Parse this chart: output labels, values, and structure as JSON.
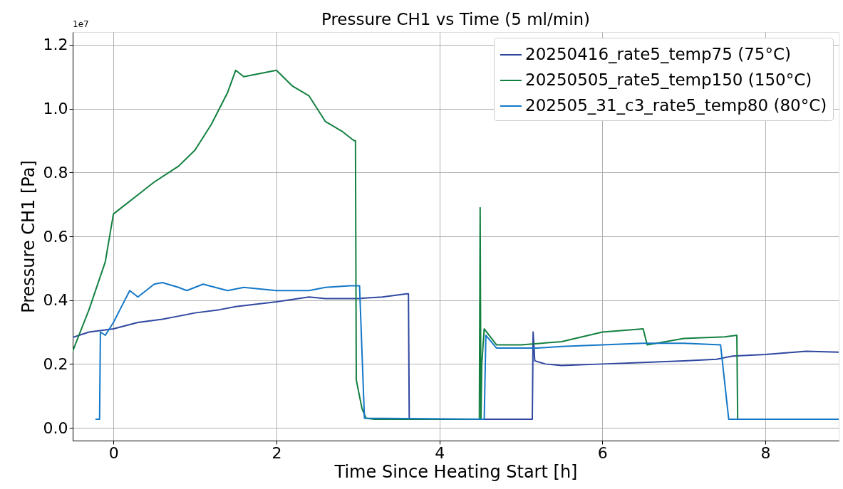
{
  "chart_data": {
    "type": "line",
    "title": "Pressure CH1 vs Time (5 ml/min)",
    "xlabel": "Time Since Heating Start [h]",
    "ylabel": "Pressure CH1 [Pa]",
    "annotations": [
      "1e7"
    ],
    "xlim": [
      -0.5,
      8.9
    ],
    "xticks": [
      0,
      2,
      4,
      6,
      8
    ],
    "ylim": [
      -0.04,
      1.24
    ],
    "yticks": [
      {
        "value": 0,
        "label": "0.0"
      },
      {
        "value": 0.2,
        "label": "0.2"
      },
      {
        "value": 0.4,
        "label": "0.4"
      },
      {
        "value": 0.6,
        "label": "0.6"
      },
      {
        "value": 0.8,
        "label": "0.8"
      },
      {
        "value": 1.0,
        "label": "1.0"
      },
      {
        "value": 1.2,
        "label": "1.2"
      }
    ],
    "grid": true,
    "legend": "top right",
    "line_style": "solid",
    "marker": "none",
    "series": [
      {
        "name": "20250416_rate5_temp75 (75°C)",
        "color": "#2f47a0",
        "x": [
          -0.5,
          -0.3,
          0.0,
          0.3,
          0.6,
          0.8,
          1.0,
          1.3,
          1.5,
          2.0,
          2.4,
          2.6,
          3.0,
          3.3,
          3.6,
          3.62,
          3.63,
          4.5,
          5.14,
          5.15,
          5.17,
          5.3,
          5.5,
          6.0,
          6.5,
          7.0,
          7.4,
          7.6,
          8.0,
          8.5,
          8.9
        ],
        "values": [
          0.283,
          0.3,
          0.31,
          0.33,
          0.34,
          0.35,
          0.36,
          0.37,
          0.38,
          0.395,
          0.41,
          0.405,
          0.405,
          0.41,
          0.42,
          0.42,
          0.027,
          0.027,
          0.027,
          0.3,
          0.21,
          0.2,
          0.195,
          0.2,
          0.205,
          0.21,
          0.215,
          0.225,
          0.23,
          0.24,
          0.237
        ]
      },
      {
        "name": "20250505_rate5_temp150 (150°C)",
        "color": "#138040",
        "x": [
          -0.5,
          -0.3,
          -0.1,
          0.0,
          0.1,
          0.3,
          0.5,
          0.8,
          1.0,
          1.2,
          1.4,
          1.5,
          1.6,
          1.8,
          2.0,
          2.2,
          2.4,
          2.6,
          2.8,
          2.95,
          2.97,
          2.98,
          3.05,
          3.1,
          3.2,
          4.49,
          4.5,
          4.51,
          4.52,
          4.55,
          4.7,
          5.0,
          5.5,
          6.0,
          6.5,
          6.55,
          7.0,
          7.5,
          7.65,
          7.66
        ],
        "values": [
          0.24,
          0.37,
          0.52,
          0.67,
          0.69,
          0.73,
          0.77,
          0.82,
          0.87,
          0.95,
          1.05,
          1.12,
          1.1,
          1.11,
          1.12,
          1.07,
          1.04,
          0.96,
          0.93,
          0.9,
          0.9,
          0.15,
          0.06,
          0.03,
          0.027,
          0.027,
          0.69,
          0.03,
          0.2,
          0.31,
          0.26,
          0.26,
          0.27,
          0.3,
          0.31,
          0.26,
          0.28,
          0.285,
          0.29,
          0.027
        ]
      },
      {
        "name": "202505_31_c3_rate5_temp80 (80°C)",
        "color": "#1478c8",
        "x": [
          -0.22,
          -0.17,
          -0.16,
          -0.1,
          0.0,
          0.1,
          0.2,
          0.3,
          0.5,
          0.6,
          0.8,
          0.9,
          1.1,
          1.4,
          1.6,
          2.0,
          2.4,
          2.6,
          2.9,
          3.02,
          3.08,
          4.55,
          4.57,
          4.7,
          5.0,
          5.2,
          5.5,
          6.0,
          6.5,
          7.0,
          7.45,
          7.55,
          8.9
        ],
        "values": [
          0.027,
          0.027,
          0.3,
          0.29,
          0.33,
          0.38,
          0.43,
          0.41,
          0.45,
          0.455,
          0.44,
          0.43,
          0.45,
          0.43,
          0.44,
          0.43,
          0.43,
          0.44,
          0.445,
          0.445,
          0.03,
          0.027,
          0.29,
          0.25,
          0.25,
          0.25,
          0.255,
          0.26,
          0.265,
          0.265,
          0.26,
          0.027,
          0.027
        ]
      }
    ]
  }
}
